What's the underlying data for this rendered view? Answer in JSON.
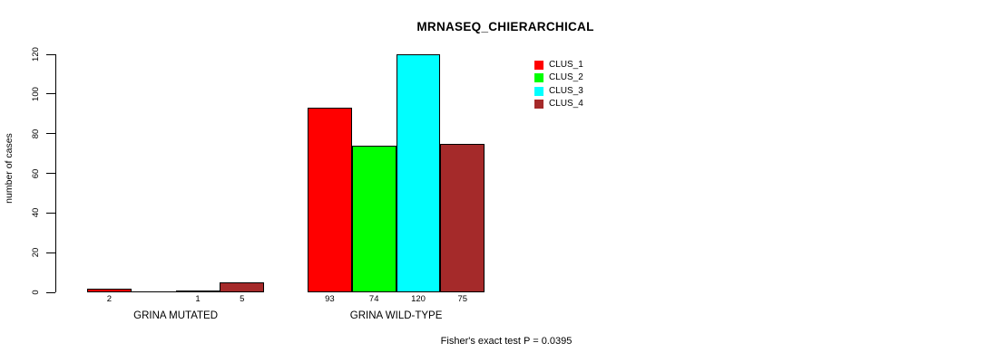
{
  "chart_data": {
    "type": "bar",
    "title": "MRNASEQ_CHIERARCHICAL",
    "ylabel": "number of cases",
    "xlabel": "",
    "ylim": [
      0,
      120
    ],
    "yticks": [
      0,
      20,
      40,
      60,
      80,
      100,
      120
    ],
    "grid": false,
    "legend_position": "top-right",
    "categories": [
      "GRINA MUTATED",
      "GRINA WILD-TYPE"
    ],
    "series": [
      {
        "name": "CLUS_1",
        "color": "#ff0000",
        "values": [
          2,
          93
        ]
      },
      {
        "name": "CLUS_2",
        "color": "#00ff00",
        "values": [
          0,
          74
        ]
      },
      {
        "name": "CLUS_3",
        "color": "#00ffff",
        "values": [
          1,
          120
        ]
      },
      {
        "name": "CLUS_4",
        "color": "#a52a2a",
        "values": [
          5,
          75
        ]
      }
    ],
    "bar_value_labels": [
      [
        "2",
        "",
        "1",
        "5"
      ],
      [
        "93",
        "74",
        "120",
        "75"
      ]
    ],
    "annotation": "Fisher's exact test P = 0.0395",
    "axis_color": "#000000",
    "background_color": "#ffffff"
  }
}
